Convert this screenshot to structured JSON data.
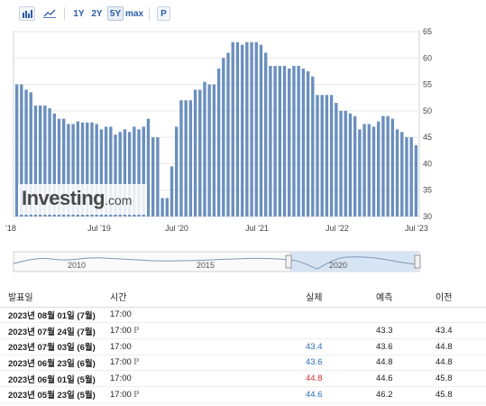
{
  "toolbar": {
    "range_buttons": [
      "1Y",
      "2Y",
      "5Y",
      "max"
    ],
    "active_range": "5Y",
    "p_button": "P"
  },
  "chart_data": {
    "type": "bar",
    "y_ticks": [
      30,
      35,
      40,
      45,
      50,
      55,
      60,
      65
    ],
    "ylim": [
      30,
      65
    ],
    "x_tick_labels": [
      "'18",
      "Jul '19",
      "Jul '20",
      "Jul '21",
      "Jul '22",
      "Jul '23"
    ],
    "values": [
      55.0,
      55.0,
      54.0,
      53.5,
      51.0,
      51.0,
      51.0,
      50.5,
      49.5,
      48.5,
      48.5,
      47.5,
      47.5,
      48.0,
      47.8,
      47.8,
      47.8,
      47.5,
      46.5,
      47.0,
      47.0,
      45.5,
      46.0,
      46.5,
      46.0,
      47.0,
      46.5,
      47.0,
      48.5,
      45.0,
      45.0,
      33.5,
      33.5,
      39.5,
      47.0,
      52.0,
      52.0,
      52.0,
      54.0,
      54.0,
      55.5,
      55.0,
      55.0,
      58.0,
      60.0,
      61.0,
      63.0,
      63.0,
      62.5,
      63.0,
      63.0,
      63.0,
      62.5,
      61.0,
      58.5,
      58.5,
      58.5,
      58.5,
      58.0,
      58.5,
      58.5,
      58.0,
      57.5,
      56.5,
      53.0,
      53.0,
      53.0,
      53.0,
      51.5,
      50.0,
      50.0,
      49.5,
      49.0,
      46.5,
      47.5,
      47.5,
      47.0,
      48.0,
      49.0,
      49.0,
      48.5,
      46.5,
      46.0,
      45.0,
      45.0,
      43.5
    ],
    "grid": true,
    "color": "#6a8fbe",
    "watermark": "Investing.com"
  },
  "navigator": {
    "labels": [
      "2010",
      "2015",
      "2020"
    ]
  },
  "table": {
    "headers": {
      "date": "발표일",
      "time": "시간",
      "actual": "실제",
      "forecast": "예측",
      "previous": "이전"
    },
    "rows": [
      {
        "date": "2023년 08월 01일 (7월)",
        "time": "17:00",
        "preliminary": "",
        "actual": "",
        "actual_color": "",
        "forecast": "",
        "previous": ""
      },
      {
        "date": "2023년 07월 24일 (7월)",
        "time": "17:00",
        "preliminary": "P",
        "actual": "",
        "actual_color": "",
        "forecast": "43.3",
        "previous": "43.4"
      },
      {
        "date": "2023년 07월 03일 (6월)",
        "time": "17:00",
        "preliminary": "",
        "actual": "43.4",
        "actual_color": "blue",
        "forecast": "43.6",
        "previous": "44.8"
      },
      {
        "date": "2023년 06월 23일 (6월)",
        "time": "17:00",
        "preliminary": "P",
        "actual": "43.6",
        "actual_color": "blue",
        "forecast": "44.8",
        "previous": "44.8"
      },
      {
        "date": "2023년 06월 01일 (5월)",
        "time": "17:00",
        "preliminary": "",
        "actual": "44.8",
        "actual_color": "red",
        "forecast": "44.6",
        "previous": "45.8"
      },
      {
        "date": "2023년 05월 23일 (5월)",
        "time": "17:00",
        "preliminary": "P",
        "actual": "44.6",
        "actual_color": "blue",
        "forecast": "46.2",
        "previous": "45.8"
      }
    ]
  }
}
